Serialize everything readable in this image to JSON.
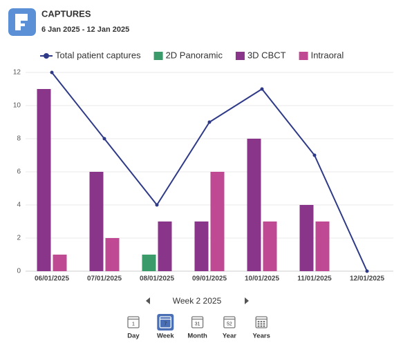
{
  "header": {
    "title": "CAPTURES",
    "date_range": "6 Jan 2025 - 12 Jan 2025"
  },
  "chart_data": {
    "type": "bar",
    "categories": [
      "06/01/2025",
      "07/01/2025",
      "08/01/2025",
      "09/01/2025",
      "10/01/2025",
      "11/01/2025",
      "12/01/2025"
    ],
    "series": [
      {
        "name": "Total patient captures",
        "type": "line",
        "color": "#2e3a87",
        "values": [
          12,
          8,
          4,
          9,
          11,
          7,
          0
        ]
      },
      {
        "name": "2D Panoramic",
        "color": "#3a9a6a",
        "values": [
          0,
          0,
          1,
          0,
          0,
          0,
          0
        ]
      },
      {
        "name": "3D CBCT",
        "color": "#88358a",
        "values": [
          11,
          6,
          3,
          3,
          8,
          4,
          0
        ]
      },
      {
        "name": "Intraoral",
        "color": "#bf4a93",
        "values": [
          1,
          2,
          0,
          6,
          3,
          3,
          0
        ]
      }
    ],
    "ylim": [
      0,
      12
    ],
    "yticks": [
      0,
      2,
      4,
      6,
      8,
      10,
      12
    ],
    "grid": true,
    "legend": "top"
  },
  "navigation": {
    "period": "Week 2 2025",
    "views": [
      {
        "label": "Day",
        "icon": "1"
      },
      {
        "label": "Week",
        "icon": "7",
        "selected": true
      },
      {
        "label": "Month",
        "icon": "31"
      },
      {
        "label": "Year",
        "icon": "52"
      },
      {
        "label": "Years"
      }
    ]
  }
}
